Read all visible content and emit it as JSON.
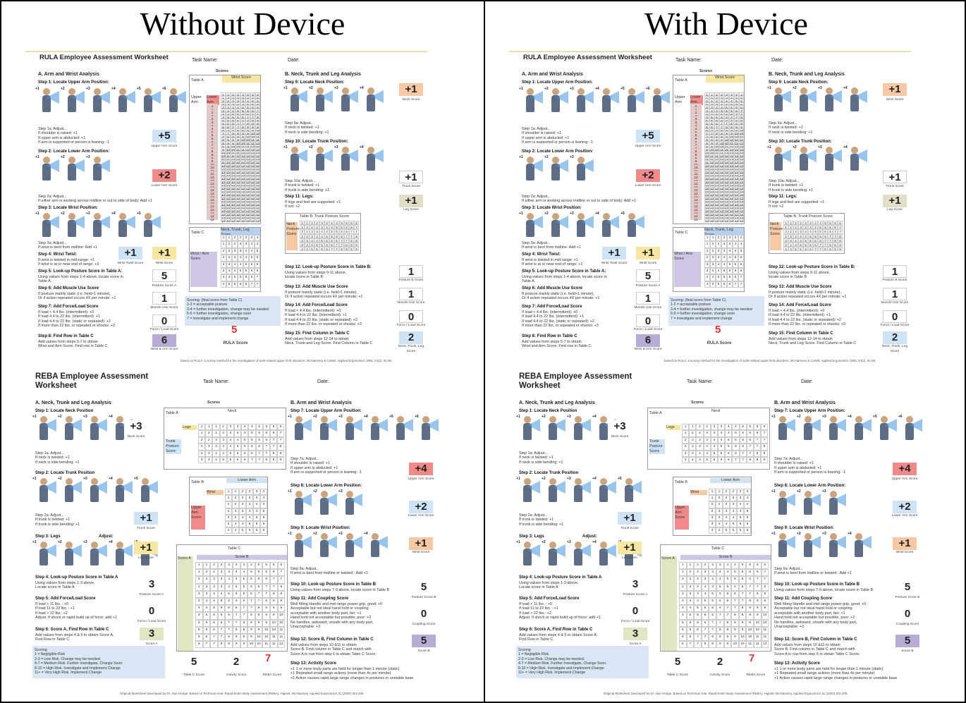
{
  "panels": [
    {
      "heading": "Without Device",
      "rula": {
        "task_score": "+5",
        "lower_arm": "+2",
        "wrist": "+1",
        "wrist_twist": "+1",
        "posture_a": "5",
        "muscle_a": "1",
        "force_a": "0",
        "wrist_arm": "6",
        "neck": "+1",
        "trunk": "+1",
        "legs": "+1",
        "posture_b": "1",
        "muscle_b": "1",
        "force_b": "0",
        "neck_trunk_leg": "2",
        "final": "5"
      },
      "reba": {
        "neck": "+3",
        "trunk": "+1",
        "legs": "+1",
        "posture_a": "3",
        "force": "0",
        "score_a": "3",
        "upper_arm": "+4",
        "lower_arm": "+2",
        "wrist": "+1",
        "posture_b": "5",
        "coupling": "0",
        "score_b": "5",
        "table_c": "5",
        "activity": "2",
        "final": "7"
      }
    },
    {
      "heading": "With Device",
      "rula": {
        "task_score": "+5",
        "lower_arm": "+2",
        "wrist": "+1",
        "wrist_twist": "+1",
        "posture_a": "5",
        "muscle_a": "1",
        "force_a": "0",
        "wrist_arm": "6",
        "neck": "+1",
        "trunk": "+1",
        "legs": "+1",
        "posture_b": "1",
        "muscle_b": "1",
        "force_b": "0",
        "neck_trunk_leg": "2",
        "final": "5"
      },
      "reba": {
        "neck": "+3",
        "trunk": "+1",
        "legs": "+1",
        "posture_a": "3",
        "force": "0",
        "score_a": "3",
        "upper_arm": "+4",
        "lower_arm": "+2",
        "wrist": "+1",
        "posture_b": "5",
        "coupling": "0",
        "score_b": "5",
        "table_c": "5",
        "activity": "2",
        "final": "7"
      }
    }
  ],
  "rula_text": {
    "title": "RULA Employee Assessment Worksheet",
    "task_name": "Task Name:",
    "date": "Date:",
    "sec_a": "A. Arm and Wrist Analysis",
    "sec_b": "B. Neck, Trunk and Leg Analysis",
    "scores": "Scores",
    "step1": "Step 1: Locate Upper Arm Position:",
    "step1a": "Step 1a: Adjust...\nIf shoulder is raised: +1\nIf upper arm is abducted: +1\nIf arm is supported or person is leaning: -1",
    "step2": "Step 2: Locate Lower Arm Position:",
    "step2a": "Step 2a: Adjust...\nIf either arm is working across midline or out to side of body: Add +1",
    "step3": "Step 3: Locate Wrist Position:",
    "step3a": "Step 3a: Adjust...\nIf wrist is bent from midline: Add +1",
    "step4": "Step 4: Wrist Twist:",
    "step4t": "If wrist is twisted in mid-range: +1\nIf wrist is at or near end of range: +2",
    "step5": "Step 5: Look-up Posture Score in Table A:",
    "step5t": "Using values from steps 1-4 above, locate score in\nTable A.",
    "step6": "Step 6: Add Muscle Use Score",
    "step6t": "If posture mainly static (i.e. held>1 minute),\nOr if action repeated occurs 4X per minute: +1",
    "step7": "Step 7: Add Force/Load Score",
    "step7t": "If load < 4.4 lbs. (intermittent): +0\nIf load 4.4 to 22 lbs. (intermittent): +1\nIf load 4.4 to 22 lbs. (static or repeated): +2\nIf more than 22 lbs. or repeated or shocks: +3",
    "step8": "Step 8: Find Row in Table C",
    "step8t": "Add values from steps 5-7 to obtain\nWrist and Arm Score. Find row in Table C.",
    "step9": "Step 9: Locate Neck Position:",
    "step9a": "Step 9a: Adjust...\nIf neck is twisted: +1\nIf neck is side bending: +1",
    "step10": "Step 10: Locate Trunk Position:",
    "step10a": "Step 10a: Adjust...\nIf trunk is twisted: +1\nIf trunk is side bending: +1",
    "step11": "Step 11: Legs:",
    "step11t": "If legs and feet are supported: +1\nIf not: +2",
    "step12": "Step 12: Look-up Posture Score in Table B:",
    "step12t": "Using values from steps 9-11 above,\nlocate score in Table B",
    "step13": "Step 13: Add Muscle Use Score",
    "step13t": "If posture mainly static (i.e. held>1 minute),\nOr if action repeated occurs 4X per minute: +1",
    "step14": "Step 14: Add Force/Load Score",
    "step14t": "If load < 4.4 lbs. (intermittent): +0\nIf load 4.4 to 22 lbs. (intermittent): +1\nIf load 4.4 to 22 lbs. (static or repeated): +2\nIf more than 22 lbs. or repeated or shocks: +3",
    "step15": "Step 15: Find Column in Table C",
    "step15t": "Add values from steps 12-14 to obtain\nNeck, Trunk and Leg Score. Find Column in Table C",
    "cap_upper": "Upper Arm Score",
    "cap_lower": "Lower Arm Score",
    "cap_wrist": "Wrist Score",
    "cap_twist": "Wrist Twist Score",
    "cap_pa": "Posture Score A",
    "cap_muscle": "Muscle Use Score",
    "cap_force": "Force / Load Score",
    "cap_wa": "Wrist & Arm Score",
    "cap_neck": "Neck Score",
    "cap_trunk": "Trunk Score",
    "cap_legs": "Leg Score",
    "cap_pb": "Posture B Score",
    "cap_ntl": "Neck, Trunk, Leg Score",
    "cap_rula": "RULA Score",
    "table_a": "Table A",
    "wrist_score": "Wrist Score",
    "upper_arm": "Upper Arm",
    "lower_arm": "Lower Arm",
    "table_b": "Table B: Trunk Posture Score",
    "table_c": "Table C",
    "ntl_score": "Neck, Trunk, Leg Score",
    "wrist_arm_score": "Wrist / Arm Score",
    "neck_posture_score": "Neck Posture Score",
    "scoring": "Scoring: (final score from Table C)\n1-2 = acceptable posture\n3-4 = further investigation, change may be needed\n5-6 = further investigation, change soon\n7 = investigate and implement change",
    "footer": "based on RULA: a survey method for the investigation of work-related upper limb disorders, McAtamney & Corlett, Applied Ergonomics 1993, 24(2), 91-99"
  },
  "reba_text": {
    "title": "REBA Employee Assessment Worksheet",
    "task_name": "Task Name:",
    "date": "Date:",
    "sec_a": "A. Neck, Trunk and Leg Analysis",
    "sec_b": "B. Arm and Wrist Analysis",
    "scores": "Scores",
    "step1": "Step 1: Locate Neck Position",
    "step1a": "Step 1a: Adjust...\nIf neck is twisted: +1\nIf neck is side bending: +1",
    "step2": "Step 2: Locate Trunk Position",
    "step2a": "Step 2a: Adjust...\nIf trunk is twisted: +1\nIf trunk is side bending: +1",
    "step3": "Step 3: Legs",
    "adjust": "Adjust:",
    "step4": "Step 4: Look-up Posture Score in Table A",
    "step4t": "Using values from steps 1-3 above,\nLocate score in Table A",
    "step5": "Step 5: Add Force/Load Score",
    "step5t": "If load < 11 lbs. : +0\nIf load 11 to 22 lbs. : +1\nIf load > 22 lbs.: +2\nAdjust: If shock or rapid build up of force: add +1",
    "step6": "Step 6: Score A, Find Row in Table C",
    "step6t": "Add values from steps 4 & 5 to obtain Score A.\nFind Row in Table C.",
    "step7": "Step 7: Locate Upper Arm Position:",
    "step7a": "Step 7a: Adjust...\nIf shoulder is raised: +1\nIf upper arm is abducted: +1\nIf arm is supported or person is leaning: -1",
    "step8": "Step 8: Locate Lower Arm Position:",
    "step9": "Step 9: Locate Wrist Position:",
    "step9a": "Step 9a: Adjust...\nIf wrist is bent from midline or twisted : Add +1",
    "step10": "Step 10: Look-up Posture Score in Table B",
    "step10t": "Using values from steps 7-9 above, locate score in Table B",
    "step11": "Step 11: Add Coupling Score",
    "step11t": "Well fitting Handle and mid range power grip, good: +0\nAcceptable but not ideal hand hold or coupling\nacceptable with another body part, fair: +1\nHand hold not acceptable but possible, poor: +2\nNo handles, awkward, unsafe with any body part,\nUnacceptable: +3",
    "step12": "Step 12: Score B, Find Column in Table C",
    "step12t": "Add values from steps 10 &11 to obtain\nScore B. Find column in Table C and match with\nScore A in row from step 6 to obtain Table C Score.",
    "step13": "Step 13: Activity Score",
    "step13t": "+1 1 or more body parts are held for longer than 1 minute (static)\n+1 Repeated small range actions (more than 4x per minute)\n+1 Action causes rapid large range changes in postures or unstable base",
    "cap_neck": "Neck Score",
    "cap_trunk": "Trunk Score",
    "cap_legs": "Leg Score",
    "cap_pa": "Posture Score A",
    "cap_force": "Force / Load Score",
    "cap_sa": "Score A",
    "cap_upper": "Upper Arm Score",
    "cap_lower": "Lower Arm Score",
    "cap_wrist": "Wrist Score",
    "cap_pb": "Posture Score B",
    "cap_coupling": "Coupling Score",
    "cap_sb": "Score B",
    "cap_tc": "Table C Score",
    "cap_activity": "Activity Score",
    "cap_reba": "REBA Score",
    "table_a": "Table A",
    "neck": "Neck",
    "legs": "Legs",
    "trunk_posture": "Trunk Posture Score",
    "table_b": "Table B",
    "lower_arm": "Lower Arm",
    "wrist": "Wrist",
    "upper_arm_score": "Upper Arm Score",
    "table_c": "Table C",
    "score_a": "Score A",
    "score_b": "Score B",
    "scoring": "Scoring\n1 = Negligible Risk\n2-3 = Low Risk. Change may be needed.\n4-7 = Medium Risk. Further Investigate, Change Soon.\n8-10 = High Risk. Investigate and Implement Change\n11+ = Very High Risk. Implement Change",
    "footer": "Original Worksheet Developed by Dr. Alan Hedge. Based on Technical note: Rapid Entire Body Assessment (REBA), Hignett, McAtamney, Applied Ergonomics 31 (2000) 201-205"
  },
  "colors": {
    "blue": "#cfe3f7",
    "red": "#f08a8a",
    "yellow": "#f7e6a0",
    "orange": "#f6c9a4",
    "purple": "#b7acd4",
    "green": "#dfe6c4"
  }
}
